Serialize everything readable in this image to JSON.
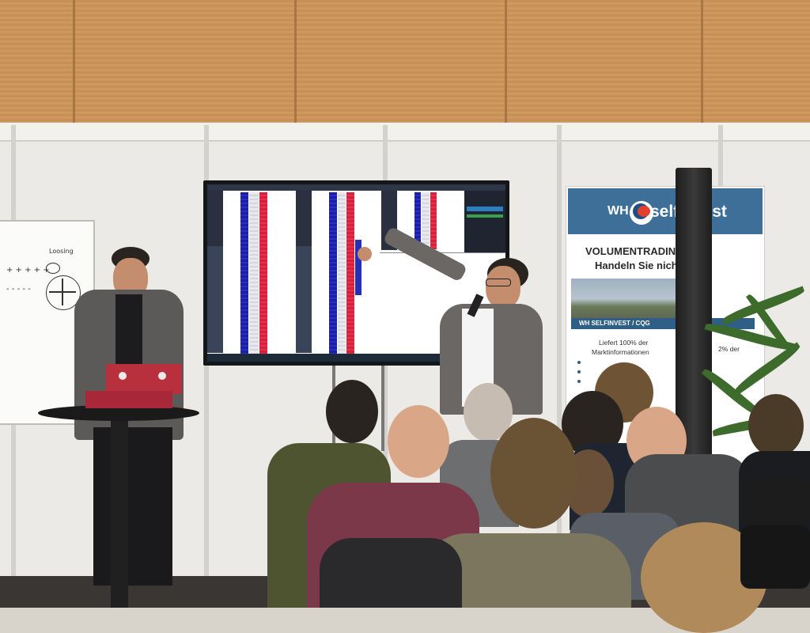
{
  "scene": {
    "description_kind": "photo",
    "colors": {
      "ceiling": "#c9945a",
      "wall": "#eceae6",
      "screen_blue": "#1b1ea8",
      "screen_red": "#d8203a",
      "banner_blue": "#3e6f98"
    }
  },
  "whiteboard": {
    "note_top": "Loosing",
    "note_left": "+ + + + +",
    "note_minus": "- - - - -"
  },
  "banner": {
    "logo_wh": "WH",
    "logo_brand": "selfinvest",
    "headline_1": "VOLUMENTRADING",
    "headline_2": "Handeln Sie nicht blind!",
    "strip": "WH SELFINVEST / CQG",
    "body_1": "Liefert 100% der",
    "body_2": "Marktinformationen",
    "body_3": "2% der"
  },
  "icons": {
    "laptop_logo": "laptop-logo-icon",
    "banner_logo": "swoosh-logo-icon"
  }
}
